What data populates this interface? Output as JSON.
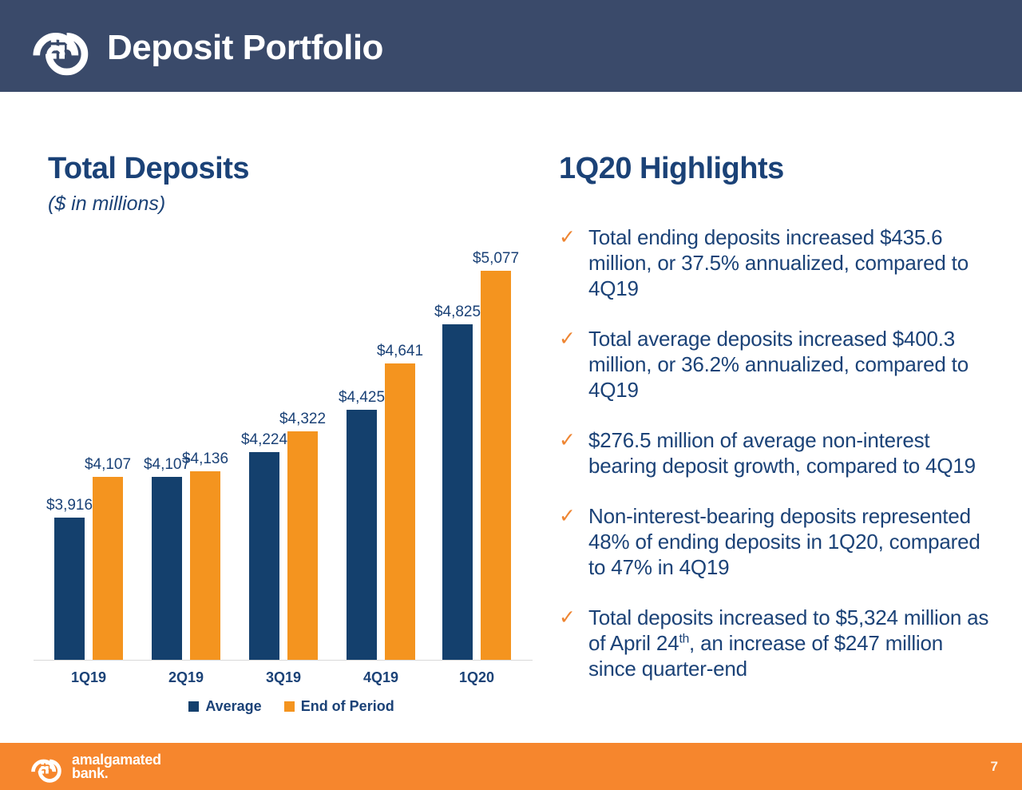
{
  "header": {
    "title": "Deposit Portfolio"
  },
  "chart_data": {
    "type": "bar",
    "title": "Total Deposits",
    "subtitle": "($ in millions)",
    "categories": [
      "1Q19",
      "2Q19",
      "3Q19",
      "4Q19",
      "1Q20"
    ],
    "series": [
      {
        "name": "Average",
        "color": "#14406D",
        "values": [
          3916,
          4107,
          4224,
          4425,
          4825
        ]
      },
      {
        "name": "End of Period",
        "color": "#F4941F",
        "values": [
          4107,
          4136,
          4322,
          4641,
          5077
        ]
      }
    ],
    "value_label_prefix": "$",
    "ylim": [
      3250,
      5120
    ],
    "gridlines": false,
    "y_axis_visible": false,
    "legend_position": "bottom"
  },
  "highlights": {
    "title": "1Q20 Highlights",
    "bullet_marker": "✓",
    "bullets": [
      {
        "lines": [
          "Total ending deposits increased $435.6",
          "million, or 37.5% annualized, compared to",
          "4Q19"
        ]
      },
      {
        "lines": [
          "Total average deposits increased $400.3",
          "million, or 36.2% annualized, compared to",
          "4Q19"
        ]
      },
      {
        "lines": [
          "$276.5 million of average non-interest",
          "bearing deposit growth, compared to 4Q19"
        ]
      },
      {
        "lines": [
          "Non-interest-bearing deposits represented",
          "48% of ending deposits in 1Q20, compared",
          "to 47% in 4Q19"
        ]
      },
      {
        "lines": [
          "Total deposits increased to $5,324 million as",
          [
            {
              "t": "of April 24"
            },
            {
              "t": "th",
              "sup": true
            },
            {
              "t": ", an increase of $247 million"
            }
          ],
          "since quarter-end"
        ]
      }
    ]
  },
  "footer": {
    "brand_line1": "amalgamated",
    "brand_line2": "bank.",
    "page_number": "7"
  },
  "colors": {
    "header_navy": "#3A4A6A",
    "navy": "#14406D",
    "text_navy": "#1B4277",
    "orange": "#F4941F",
    "footer_orange": "#F6862D",
    "check_orange": "#EE8532",
    "axis_line": "#D9D9D9"
  }
}
